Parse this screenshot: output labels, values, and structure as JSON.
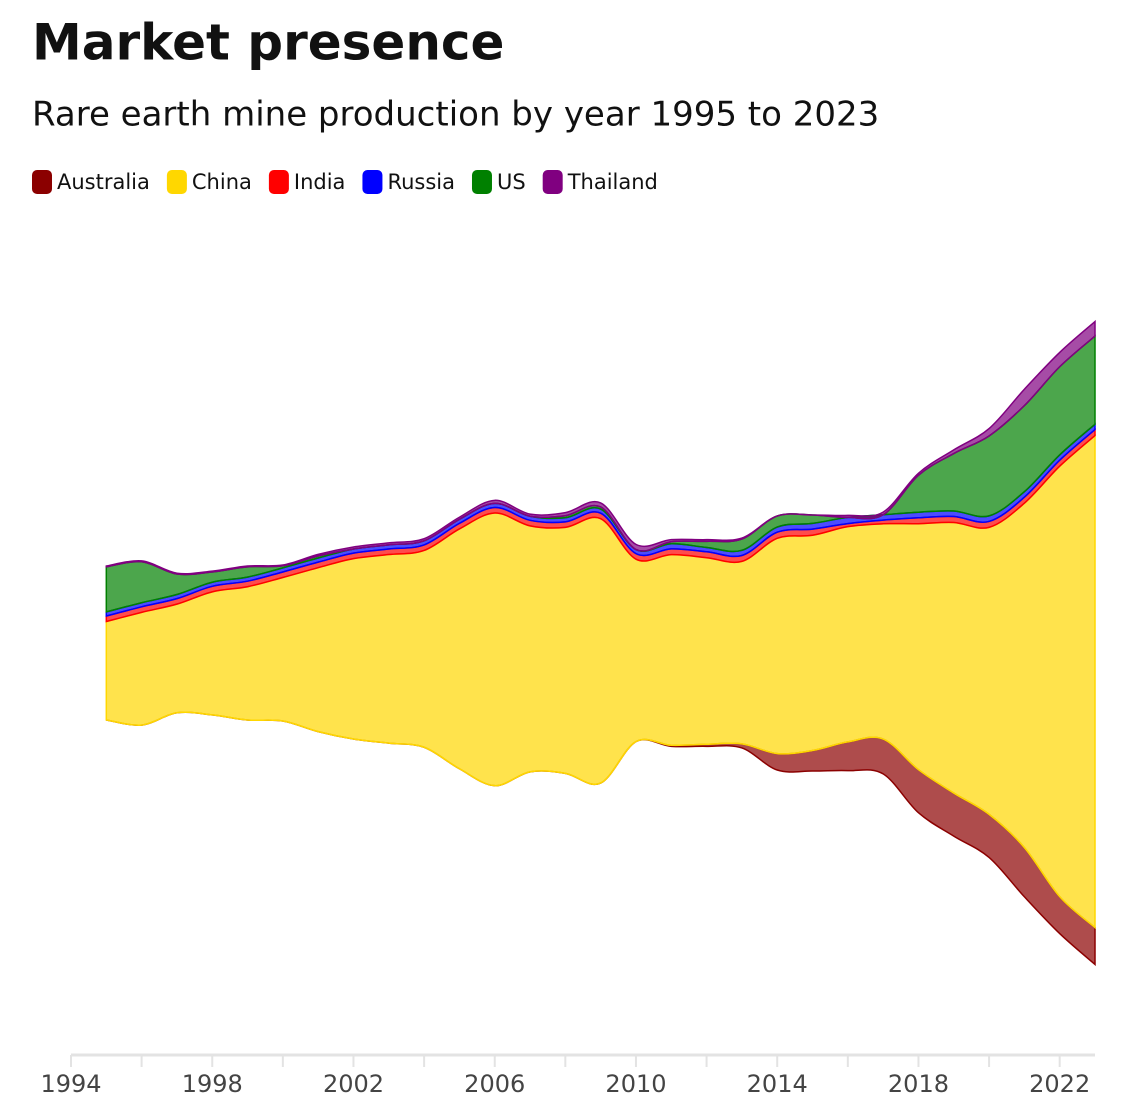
{
  "chart_data": {
    "type": "streamgraph",
    "title": "Market presence",
    "subtitle": "Rare earth mine production by year 1995 to 2023",
    "x": [
      1995,
      1996,
      1997,
      1998,
      1999,
      2000,
      2001,
      2002,
      2003,
      2004,
      2005,
      2006,
      2007,
      2008,
      2009,
      2010,
      2011,
      2012,
      2013,
      2014,
      2015,
      2016,
      2017,
      2018,
      2019,
      2020,
      2021,
      2022,
      2023
    ],
    "series": [
      {
        "name": "Australia",
        "color": "#8b0000",
        "values": [
          0,
          0,
          0,
          0,
          0,
          0,
          0,
          0,
          0,
          0,
          0,
          0,
          0,
          0,
          0,
          0,
          0.5,
          1,
          2,
          8,
          10,
          14,
          17,
          21,
          21,
          21,
          24,
          18,
          18
        ]
      },
      {
        "name": "China",
        "color": "#ffd700",
        "values": [
          48,
          55,
          53,
          60,
          65,
          70,
          80,
          88,
          92,
          96,
          117,
          133,
          120,
          120,
          129,
          89,
          93,
          91,
          89,
          105,
          105,
          105,
          105,
          120,
          132,
          140,
          168,
          210,
          240
        ]
      },
      {
        "name": "India",
        "color": "#ff0000",
        "values": [
          2.7,
          2.7,
          2.7,
          2.7,
          2.7,
          2.7,
          2.7,
          2.7,
          2.7,
          2.7,
          2.7,
          2.7,
          2.7,
          2.7,
          2.7,
          2.7,
          2.8,
          2.9,
          2.9,
          3,
          3,
          1.5,
          1.8,
          2.9,
          2.9,
          2.9,
          2.9,
          2.9,
          2.9
        ]
      },
      {
        "name": "Russia",
        "color": "#0000ff",
        "values": [
          2,
          2,
          2,
          2,
          2,
          2,
          2,
          2,
          2,
          2,
          2,
          2,
          2,
          2,
          2,
          2,
          2.5,
          2.1,
          2.5,
          2.5,
          2.8,
          3,
          2.6,
          2.7,
          2.7,
          2.7,
          2.7,
          2.6,
          2.6
        ]
      },
      {
        "name": "US",
        "color": "#008000",
        "values": [
          22,
          20,
          10,
          5,
          5,
          1,
          1,
          0,
          0,
          0,
          0,
          0,
          0,
          1,
          1,
          0,
          1,
          3,
          5.5,
          5.4,
          4.1,
          0,
          0,
          18,
          28,
          39,
          42,
          43,
          43
        ]
      },
      {
        "name": "Thailand",
        "color": "#800080",
        "values": [
          0.4,
          0.4,
          0.4,
          0.4,
          0.4,
          0.4,
          0.8,
          1,
          1,
          1,
          1,
          1.5,
          1,
          1.5,
          2,
          2.5,
          1,
          0.8,
          0.5,
          0,
          0,
          1,
          1.3,
          1,
          1.8,
          3.6,
          8,
          7,
          7.1
        ]
      }
    ],
    "xlim": [
      1994,
      2023
    ],
    "xticks": [
      1994,
      1998,
      2002,
      2006,
      2010,
      2014,
      2018,
      2022
    ],
    "minor_xticks": [
      1996,
      2000,
      2004,
      2008,
      2012,
      2016,
      2020
    ],
    "legend": "top-left"
  }
}
